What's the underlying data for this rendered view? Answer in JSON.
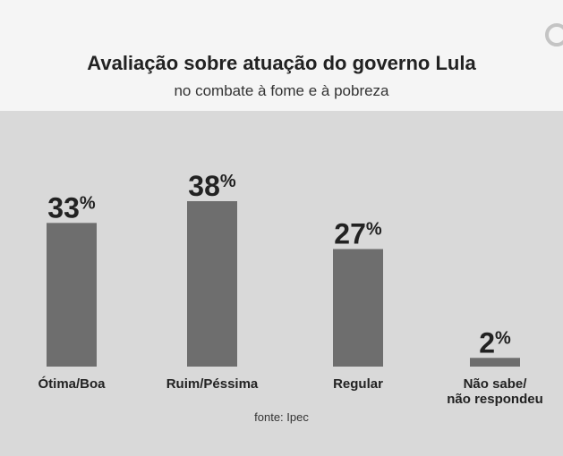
{
  "header": {
    "title": "Avaliação sobre atuação do governo Lula",
    "subtitle": "no combate à fome e à pobreza"
  },
  "footer": {
    "source": "fonte: Ipec"
  },
  "colors": {
    "bar": "#6e6e6e",
    "text": "#222222",
    "background": "#d9d9d9",
    "header_bg": "#f5f5f5"
  },
  "chart_data": {
    "type": "bar",
    "title": "Avaliação sobre atuação do governo Lula",
    "subtitle": "no combate à fome e à pobreza",
    "categories": [
      [
        "Ótima/Boa"
      ],
      [
        "Ruim/Péssima"
      ],
      [
        "Regular"
      ],
      [
        "Não sabe/",
        "não respondeu"
      ]
    ],
    "values": [
      33,
      38,
      27,
      2
    ],
    "unit": "%",
    "ylim": [
      0,
      38
    ],
    "grid": false,
    "legend": "none"
  }
}
